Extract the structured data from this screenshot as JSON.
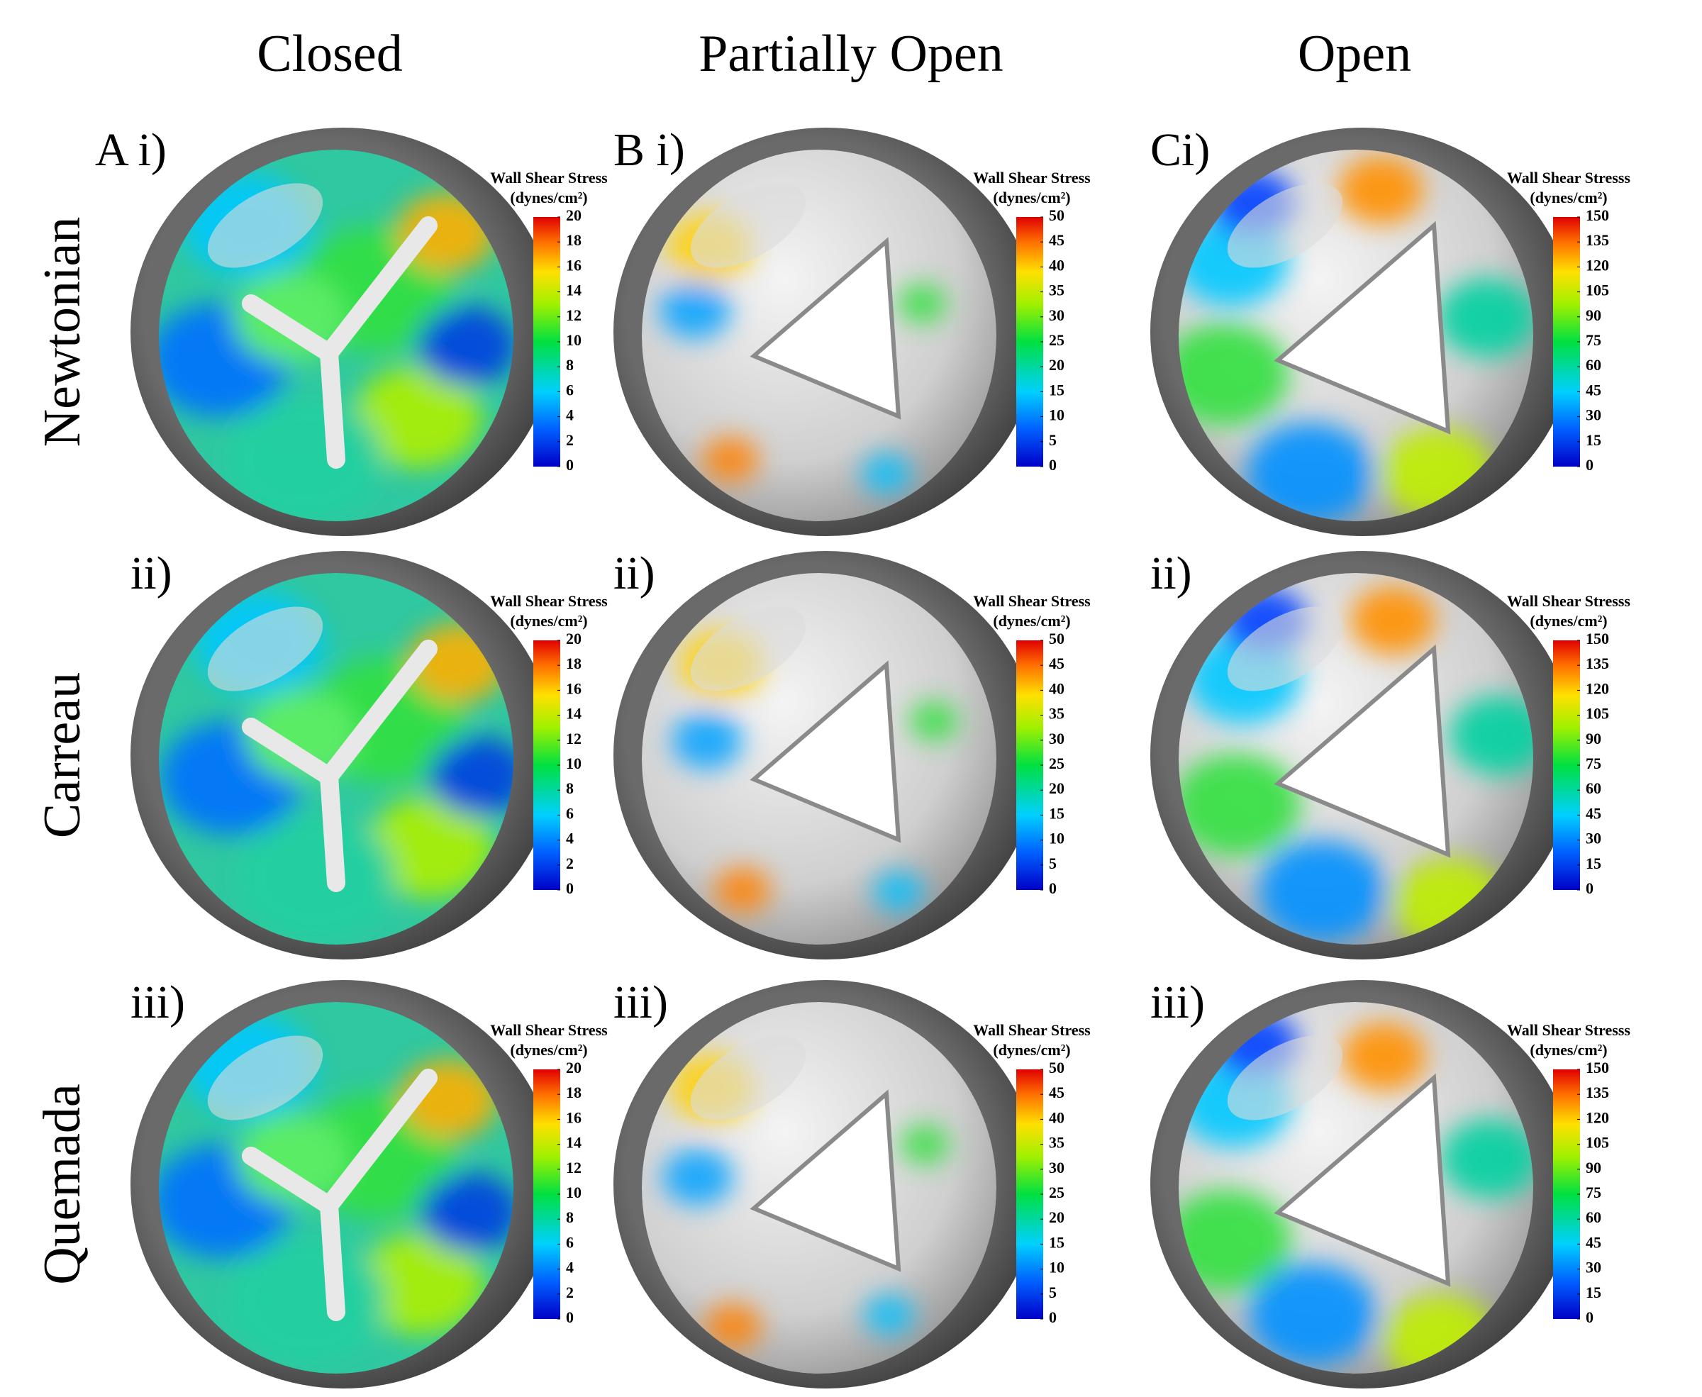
{
  "columns": [
    "Closed",
    "Partially Open",
    "Open"
  ],
  "rows": [
    "Newtonian",
    "Carreau",
    "Quemada"
  ],
  "panel_labels": [
    [
      "A i)",
      "B i)",
      "Ci)"
    ],
    [
      "ii)",
      "ii)",
      "ii)"
    ],
    [
      "iii)",
      "iii)",
      "iii)"
    ]
  ],
  "colorbars": [
    {
      "title": "Wall Shear Stress",
      "unit": "(dynes/cm²)",
      "ticks": [
        20,
        18,
        16,
        14,
        12,
        10,
        8,
        6,
        4,
        2,
        0
      ]
    },
    {
      "title": "Wall Shear Stress",
      "unit": "(dynes/cm²)",
      "ticks": [
        50,
        45,
        40,
        35,
        30,
        25,
        20,
        15,
        10,
        5,
        0
      ]
    },
    {
      "title": "Wall Shear Stresss",
      "unit": "(dynes/cm²)",
      "ticks": [
        150,
        135,
        120,
        105,
        90,
        75,
        60,
        45,
        30,
        15,
        0
      ]
    }
  ]
}
